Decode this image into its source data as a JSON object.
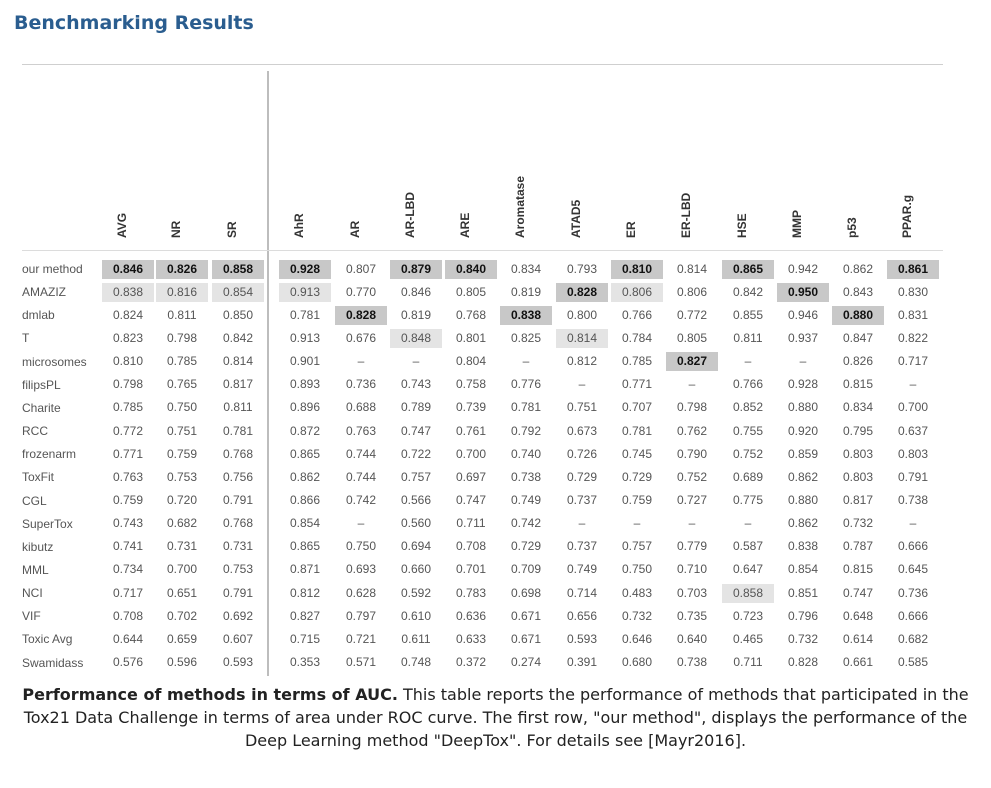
{
  "title": "Benchmarking Results",
  "columns": [
    "AVG",
    "NR",
    "SR",
    "AhR",
    "AR",
    "AR-LBD",
    "ARE",
    "Aromatase",
    "ATAD5",
    "ER",
    "ER-LBD",
    "HSE",
    "MMP",
    "p53",
    "PPAR.g"
  ],
  "rows": [
    {
      "name": "our method",
      "cells": [
        {
          "v": "0.846",
          "s": "best"
        },
        {
          "v": "0.826",
          "s": "best"
        },
        {
          "v": "0.858",
          "s": "best"
        },
        {
          "v": "0.928",
          "s": "best"
        },
        {
          "v": "0.807"
        },
        {
          "v": "0.879",
          "s": "best"
        },
        {
          "v": "0.840",
          "s": "best"
        },
        {
          "v": "0.834"
        },
        {
          "v": "0.793"
        },
        {
          "v": "0.810",
          "s": "best"
        },
        {
          "v": "0.814"
        },
        {
          "v": "0.865",
          "s": "best"
        },
        {
          "v": "0.942"
        },
        {
          "v": "0.862"
        },
        {
          "v": "0.861",
          "s": "best"
        }
      ]
    },
    {
      "name": "AMAZIZ",
      "cells": [
        {
          "v": "0.838",
          "s": "second"
        },
        {
          "v": "0.816",
          "s": "second"
        },
        {
          "v": "0.854",
          "s": "second"
        },
        {
          "v": "0.913",
          "s": "second"
        },
        {
          "v": "0.770"
        },
        {
          "v": "0.846"
        },
        {
          "v": "0.805"
        },
        {
          "v": "0.819"
        },
        {
          "v": "0.828",
          "s": "best"
        },
        {
          "v": "0.806",
          "s": "second"
        },
        {
          "v": "0.806"
        },
        {
          "v": "0.842"
        },
        {
          "v": "0.950",
          "s": "best"
        },
        {
          "v": "0.843"
        },
        {
          "v": "0.830"
        }
      ]
    },
    {
      "name": "dmlab",
      "cells": [
        {
          "v": "0.824"
        },
        {
          "v": "0.811"
        },
        {
          "v": "0.850"
        },
        {
          "v": "0.781"
        },
        {
          "v": "0.828",
          "s": "best"
        },
        {
          "v": "0.819"
        },
        {
          "v": "0.768"
        },
        {
          "v": "0.838",
          "s": "best"
        },
        {
          "v": "0.800"
        },
        {
          "v": "0.766"
        },
        {
          "v": "0.772"
        },
        {
          "v": "0.855"
        },
        {
          "v": "0.946"
        },
        {
          "v": "0.880",
          "s": "best"
        },
        {
          "v": "0.831"
        }
      ]
    },
    {
      "name": "T",
      "cells": [
        {
          "v": "0.823"
        },
        {
          "v": "0.798"
        },
        {
          "v": "0.842"
        },
        {
          "v": "0.913"
        },
        {
          "v": "0.676"
        },
        {
          "v": "0.848",
          "s": "second"
        },
        {
          "v": "0.801"
        },
        {
          "v": "0.825"
        },
        {
          "v": "0.814",
          "s": "second"
        },
        {
          "v": "0.784"
        },
        {
          "v": "0.805"
        },
        {
          "v": "0.811"
        },
        {
          "v": "0.937"
        },
        {
          "v": "0.847"
        },
        {
          "v": "0.822"
        }
      ]
    },
    {
      "name": "microsomes",
      "cells": [
        {
          "v": "0.810"
        },
        {
          "v": "0.785"
        },
        {
          "v": "0.814"
        },
        {
          "v": "0.901"
        },
        {
          "v": "–"
        },
        {
          "v": "–"
        },
        {
          "v": "0.804"
        },
        {
          "v": "–"
        },
        {
          "v": "0.812"
        },
        {
          "v": "0.785"
        },
        {
          "v": "0.827",
          "s": "best"
        },
        {
          "v": "–"
        },
        {
          "v": "–"
        },
        {
          "v": "0.826"
        },
        {
          "v": "0.717"
        }
      ]
    },
    {
      "name": "filipsPL",
      "cells": [
        {
          "v": "0.798"
        },
        {
          "v": "0.765"
        },
        {
          "v": "0.817"
        },
        {
          "v": "0.893"
        },
        {
          "v": "0.736"
        },
        {
          "v": "0.743"
        },
        {
          "v": "0.758"
        },
        {
          "v": "0.776"
        },
        {
          "v": "–"
        },
        {
          "v": "0.771"
        },
        {
          "v": "–"
        },
        {
          "v": "0.766"
        },
        {
          "v": "0.928"
        },
        {
          "v": "0.815"
        },
        {
          "v": "–"
        }
      ]
    },
    {
      "name": "Charite",
      "cells": [
        {
          "v": "0.785"
        },
        {
          "v": "0.750"
        },
        {
          "v": "0.811"
        },
        {
          "v": "0.896"
        },
        {
          "v": "0.688"
        },
        {
          "v": "0.789"
        },
        {
          "v": "0.739"
        },
        {
          "v": "0.781"
        },
        {
          "v": "0.751"
        },
        {
          "v": "0.707"
        },
        {
          "v": "0.798"
        },
        {
          "v": "0.852"
        },
        {
          "v": "0.880"
        },
        {
          "v": "0.834"
        },
        {
          "v": "0.700"
        }
      ]
    },
    {
      "name": "RCC",
      "cells": [
        {
          "v": "0.772"
        },
        {
          "v": "0.751"
        },
        {
          "v": "0.781"
        },
        {
          "v": "0.872"
        },
        {
          "v": "0.763"
        },
        {
          "v": "0.747"
        },
        {
          "v": "0.761"
        },
        {
          "v": "0.792"
        },
        {
          "v": "0.673"
        },
        {
          "v": "0.781"
        },
        {
          "v": "0.762"
        },
        {
          "v": "0.755"
        },
        {
          "v": "0.920"
        },
        {
          "v": "0.795"
        },
        {
          "v": "0.637"
        }
      ]
    },
    {
      "name": "frozenarm",
      "cells": [
        {
          "v": "0.771"
        },
        {
          "v": "0.759"
        },
        {
          "v": "0.768"
        },
        {
          "v": "0.865"
        },
        {
          "v": "0.744"
        },
        {
          "v": "0.722"
        },
        {
          "v": "0.700"
        },
        {
          "v": "0.740"
        },
        {
          "v": "0.726"
        },
        {
          "v": "0.745"
        },
        {
          "v": "0.790"
        },
        {
          "v": "0.752"
        },
        {
          "v": "0.859"
        },
        {
          "v": "0.803"
        },
        {
          "v": "0.803"
        }
      ]
    },
    {
      "name": "ToxFit",
      "cells": [
        {
          "v": "0.763"
        },
        {
          "v": "0.753"
        },
        {
          "v": "0.756"
        },
        {
          "v": "0.862"
        },
        {
          "v": "0.744"
        },
        {
          "v": "0.757"
        },
        {
          "v": "0.697"
        },
        {
          "v": "0.738"
        },
        {
          "v": "0.729"
        },
        {
          "v": "0.729"
        },
        {
          "v": "0.752"
        },
        {
          "v": "0.689"
        },
        {
          "v": "0.862"
        },
        {
          "v": "0.803"
        },
        {
          "v": "0.791"
        }
      ]
    },
    {
      "name": "CGL",
      "cells": [
        {
          "v": "0.759"
        },
        {
          "v": "0.720"
        },
        {
          "v": "0.791"
        },
        {
          "v": "0.866"
        },
        {
          "v": "0.742"
        },
        {
          "v": "0.566"
        },
        {
          "v": "0.747"
        },
        {
          "v": "0.749"
        },
        {
          "v": "0.737"
        },
        {
          "v": "0.759"
        },
        {
          "v": "0.727"
        },
        {
          "v": "0.775"
        },
        {
          "v": "0.880"
        },
        {
          "v": "0.817"
        },
        {
          "v": "0.738"
        }
      ]
    },
    {
      "name": "SuperTox",
      "cells": [
        {
          "v": "0.743"
        },
        {
          "v": "0.682"
        },
        {
          "v": "0.768"
        },
        {
          "v": "0.854"
        },
        {
          "v": "–"
        },
        {
          "v": "0.560"
        },
        {
          "v": "0.711"
        },
        {
          "v": "0.742"
        },
        {
          "v": "–"
        },
        {
          "v": "–"
        },
        {
          "v": "–"
        },
        {
          "v": "–"
        },
        {
          "v": "0.862"
        },
        {
          "v": "0.732"
        },
        {
          "v": "–"
        }
      ]
    },
    {
      "name": "kibutz",
      "cells": [
        {
          "v": "0.741"
        },
        {
          "v": "0.731"
        },
        {
          "v": "0.731"
        },
        {
          "v": "0.865"
        },
        {
          "v": "0.750"
        },
        {
          "v": "0.694"
        },
        {
          "v": "0.708"
        },
        {
          "v": "0.729"
        },
        {
          "v": "0.737"
        },
        {
          "v": "0.757"
        },
        {
          "v": "0.779"
        },
        {
          "v": "0.587"
        },
        {
          "v": "0.838"
        },
        {
          "v": "0.787"
        },
        {
          "v": "0.666"
        }
      ]
    },
    {
      "name": "MML",
      "cells": [
        {
          "v": "0.734"
        },
        {
          "v": "0.700"
        },
        {
          "v": "0.753"
        },
        {
          "v": "0.871"
        },
        {
          "v": "0.693"
        },
        {
          "v": "0.660"
        },
        {
          "v": "0.701"
        },
        {
          "v": "0.709"
        },
        {
          "v": "0.749"
        },
        {
          "v": "0.750"
        },
        {
          "v": "0.710"
        },
        {
          "v": "0.647"
        },
        {
          "v": "0.854"
        },
        {
          "v": "0.815"
        },
        {
          "v": "0.645"
        }
      ]
    },
    {
      "name": "NCI",
      "cells": [
        {
          "v": "0.717"
        },
        {
          "v": "0.651"
        },
        {
          "v": "0.791"
        },
        {
          "v": "0.812"
        },
        {
          "v": "0.628"
        },
        {
          "v": "0.592"
        },
        {
          "v": "0.783"
        },
        {
          "v": "0.698"
        },
        {
          "v": "0.714"
        },
        {
          "v": "0.483"
        },
        {
          "v": "0.703"
        },
        {
          "v": "0.858",
          "s": "second"
        },
        {
          "v": "0.851"
        },
        {
          "v": "0.747"
        },
        {
          "v": "0.736"
        }
      ]
    },
    {
      "name": "VIF",
      "cells": [
        {
          "v": "0.708"
        },
        {
          "v": "0.702"
        },
        {
          "v": "0.692"
        },
        {
          "v": "0.827"
        },
        {
          "v": "0.797"
        },
        {
          "v": "0.610"
        },
        {
          "v": "0.636"
        },
        {
          "v": "0.671"
        },
        {
          "v": "0.656"
        },
        {
          "v": "0.732"
        },
        {
          "v": "0.735"
        },
        {
          "v": "0.723"
        },
        {
          "v": "0.796"
        },
        {
          "v": "0.648"
        },
        {
          "v": "0.666"
        }
      ]
    },
    {
      "name": "Toxic Avg",
      "cells": [
        {
          "v": "0.644"
        },
        {
          "v": "0.659"
        },
        {
          "v": "0.607"
        },
        {
          "v": "0.715"
        },
        {
          "v": "0.721"
        },
        {
          "v": "0.611"
        },
        {
          "v": "0.633"
        },
        {
          "v": "0.671"
        },
        {
          "v": "0.593"
        },
        {
          "v": "0.646"
        },
        {
          "v": "0.640"
        },
        {
          "v": "0.465"
        },
        {
          "v": "0.732"
        },
        {
          "v": "0.614"
        },
        {
          "v": "0.682"
        }
      ]
    },
    {
      "name": "Swamidass",
      "cells": [
        {
          "v": "0.576"
        },
        {
          "v": "0.596"
        },
        {
          "v": "0.593"
        },
        {
          "v": "0.353"
        },
        {
          "v": "0.571"
        },
        {
          "v": "0.748"
        },
        {
          "v": "0.372"
        },
        {
          "v": "0.274"
        },
        {
          "v": "0.391"
        },
        {
          "v": "0.680"
        },
        {
          "v": "0.738"
        },
        {
          "v": "0.711"
        },
        {
          "v": "0.828"
        },
        {
          "v": "0.661"
        },
        {
          "v": "0.585"
        }
      ]
    }
  ],
  "caption": {
    "bold": "Performance of methods in terms of AUC.",
    "text": " This table reports the performance of methods that participated in the Tox21 Data Challenge in terms of area under ROC curve. The first row, \"our method\", displays the performance of the Deep Learning method \"DeepTox\". For details see [Mayr2016]."
  }
}
